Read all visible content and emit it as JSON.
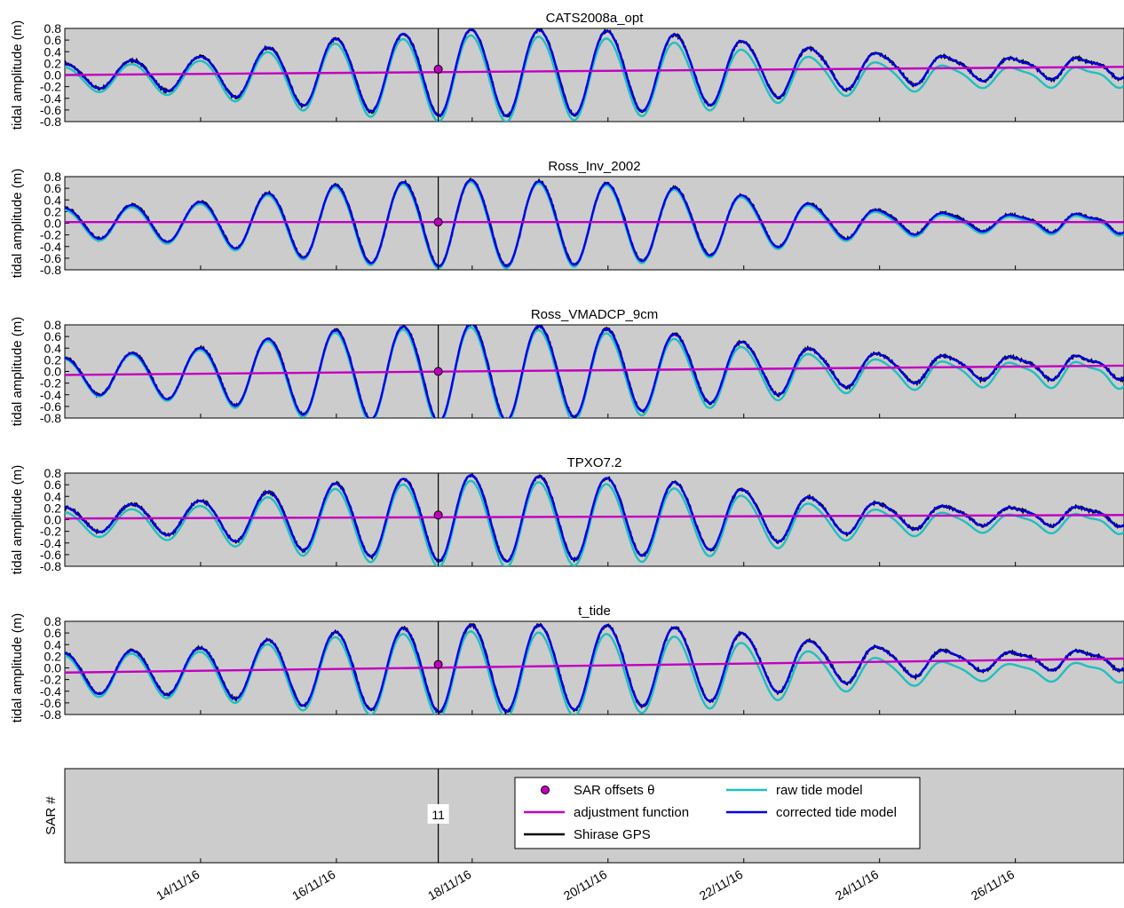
{
  "chart_data": {
    "type": "line",
    "ylabel": "tidal amplitude (m)",
    "ylim": [
      -0.8,
      0.8
    ],
    "yticks": [
      "0.8",
      "0.6",
      "0.4",
      "0.2",
      "0.0",
      "-0.2",
      "-0.4",
      "-0.6",
      "-0.8"
    ],
    "xlim_days": [
      12.0,
      27.6
    ],
    "x_ticks": [
      {
        "day": 14,
        "label": "14/11/16"
      },
      {
        "day": 16,
        "label": "16/11/16"
      },
      {
        "day": 18,
        "label": "18/11/16"
      },
      {
        "day": 20,
        "label": "20/11/16"
      },
      {
        "day": 22,
        "label": "22/11/16"
      },
      {
        "day": 24,
        "label": "24/11/16"
      },
      {
        "day": 26,
        "label": "26/11/16"
      }
    ],
    "sar_time_day": 17.5,
    "sar_label": "11",
    "sar_ylabel": "SAR #",
    "colors": {
      "gps": "#000000",
      "raw": "#1fbfbf",
      "corrected": "#0000ee",
      "adjustment": "#c000c0",
      "sar": "#c000c0",
      "background": "#cccccc"
    },
    "legend": {
      "placement": "lower-right",
      "entries": [
        {
          "key": "sar",
          "label": "SAR offsets θ"
        },
        {
          "key": "adjustment",
          "label": "adjustment function"
        },
        {
          "key": "gps",
          "label": "Shirase GPS"
        },
        {
          "key": "raw",
          "label": "raw tide model"
        },
        {
          "key": "corrected",
          "label": "corrected tide model"
        }
      ]
    },
    "panels": [
      {
        "title": "CATS2008a_opt",
        "sar_offset": 0.1,
        "adjustment": {
          "x": [
            12.0,
            27.6
          ],
          "y": [
            0.0,
            0.14
          ]
        },
        "amp_raw": [
          0.2,
          0.3,
          0.6,
          0.75,
          0.7,
          0.55,
          0.35,
          0.25,
          0.3
        ],
        "amp_corr": [
          0.2,
          0.3,
          0.6,
          0.75,
          0.72,
          0.58,
          0.38,
          0.28,
          0.3
        ],
        "raw_offset": -0.06
      },
      {
        "title": "Ross_Inv_2002",
        "sar_offset": 0.02,
        "adjustment": {
          "x": [
            12.0,
            27.6
          ],
          "y": [
            0.02,
            0.02
          ]
        },
        "amp_raw": [
          0.25,
          0.35,
          0.65,
          0.75,
          0.7,
          0.55,
          0.3,
          0.2,
          0.3
        ],
        "amp_corr": [
          0.25,
          0.35,
          0.65,
          0.75,
          0.7,
          0.55,
          0.3,
          0.2,
          0.3
        ],
        "raw_offset": -0.02
      },
      {
        "title": "Ross_VMADCP_9cm",
        "sar_offset": 0.0,
        "adjustment": {
          "x": [
            12.0,
            27.6
          ],
          "y": [
            -0.06,
            0.1
          ]
        },
        "amp_raw": [
          0.3,
          0.45,
          0.75,
          0.85,
          0.75,
          0.55,
          0.35,
          0.3,
          0.4
        ],
        "amp_corr": [
          0.3,
          0.45,
          0.75,
          0.85,
          0.75,
          0.55,
          0.35,
          0.28,
          0.36
        ],
        "raw_offset": -0.06
      },
      {
        "title": "TPXO7.2",
        "sar_offset": 0.08,
        "adjustment": {
          "x": [
            12.0,
            27.6
          ],
          "y": [
            0.02,
            0.08
          ]
        },
        "amp_raw": [
          0.2,
          0.3,
          0.6,
          0.75,
          0.7,
          0.55,
          0.32,
          0.22,
          0.3
        ],
        "amp_corr": [
          0.2,
          0.3,
          0.6,
          0.75,
          0.7,
          0.55,
          0.32,
          0.22,
          0.3
        ],
        "raw_offset": -0.07
      },
      {
        "title": "t_tide",
        "sar_offset": 0.06,
        "adjustment": {
          "x": [
            12.0,
            27.6
          ],
          "y": [
            -0.08,
            0.16
          ]
        },
        "amp_raw": [
          0.35,
          0.4,
          0.65,
          0.75,
          0.7,
          0.6,
          0.35,
          0.2,
          0.3
        ],
        "amp_corr": [
          0.35,
          0.4,
          0.65,
          0.75,
          0.72,
          0.62,
          0.38,
          0.22,
          0.3
        ],
        "raw_offset": -0.1
      }
    ]
  }
}
